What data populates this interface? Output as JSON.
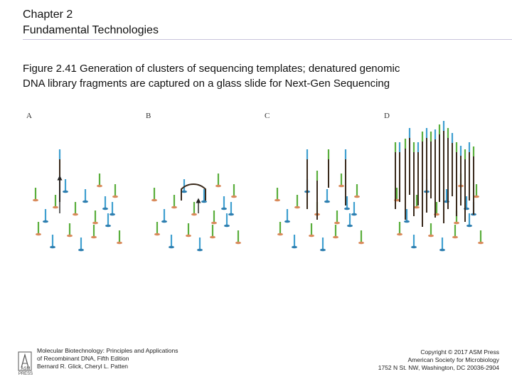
{
  "header": {
    "chapter": "Chapter 2",
    "subtitle": "Fundamental Technologies"
  },
  "figure": {
    "caption_line1": "Figure 2.41 Generation of clusters of sequencing templates; denatured genomic",
    "caption_line2": "DNA library fragments are captured on a glass slide for Next-Gen Sequencing",
    "panels": [
      "A",
      "B",
      "C",
      "D"
    ]
  },
  "colors": {
    "green_strand": "#5aae3c",
    "blue_strand": "#3f9fd0",
    "dark_strand": "#3a2a1c",
    "orange_anchor": "#d98a5b",
    "blue_anchor": "#2f7fb0"
  },
  "footer": {
    "left_line1": "Molecular Biotechnology: Principles and Applications",
    "left_line2": "of Recombinant DNA, Fifth Edition",
    "left_line3": "Bernard R. Glick, Cheryl L. Patten",
    "right_line1": "Copyright © 2017 ASM Press",
    "right_line2": "American Society for Microbiology",
    "right_line3": "1752 N St. NW, Washington, DC 20036-2904",
    "logo_text_1": "ASM",
    "logo_text_2": "PRESS"
  }
}
